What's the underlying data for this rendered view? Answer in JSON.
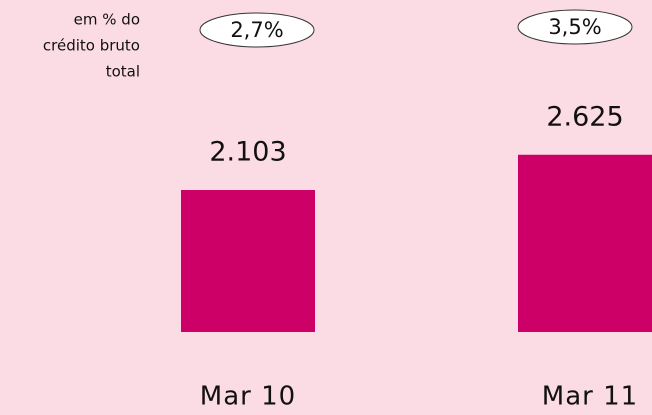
{
  "chart_data": {
    "type": "bar",
    "annotation": [
      "em % do",
      "crédito bruto",
      "total"
    ],
    "categories": [
      "Mar 10",
      "Mar 11"
    ],
    "values": [
      2103,
      2625
    ],
    "value_labels": [
      "2.103",
      "2.625"
    ],
    "ratios": [
      2.7,
      3.5
    ],
    "ratio_labels": [
      "2,7%",
      "3,5%"
    ],
    "color": "#cc0066"
  }
}
